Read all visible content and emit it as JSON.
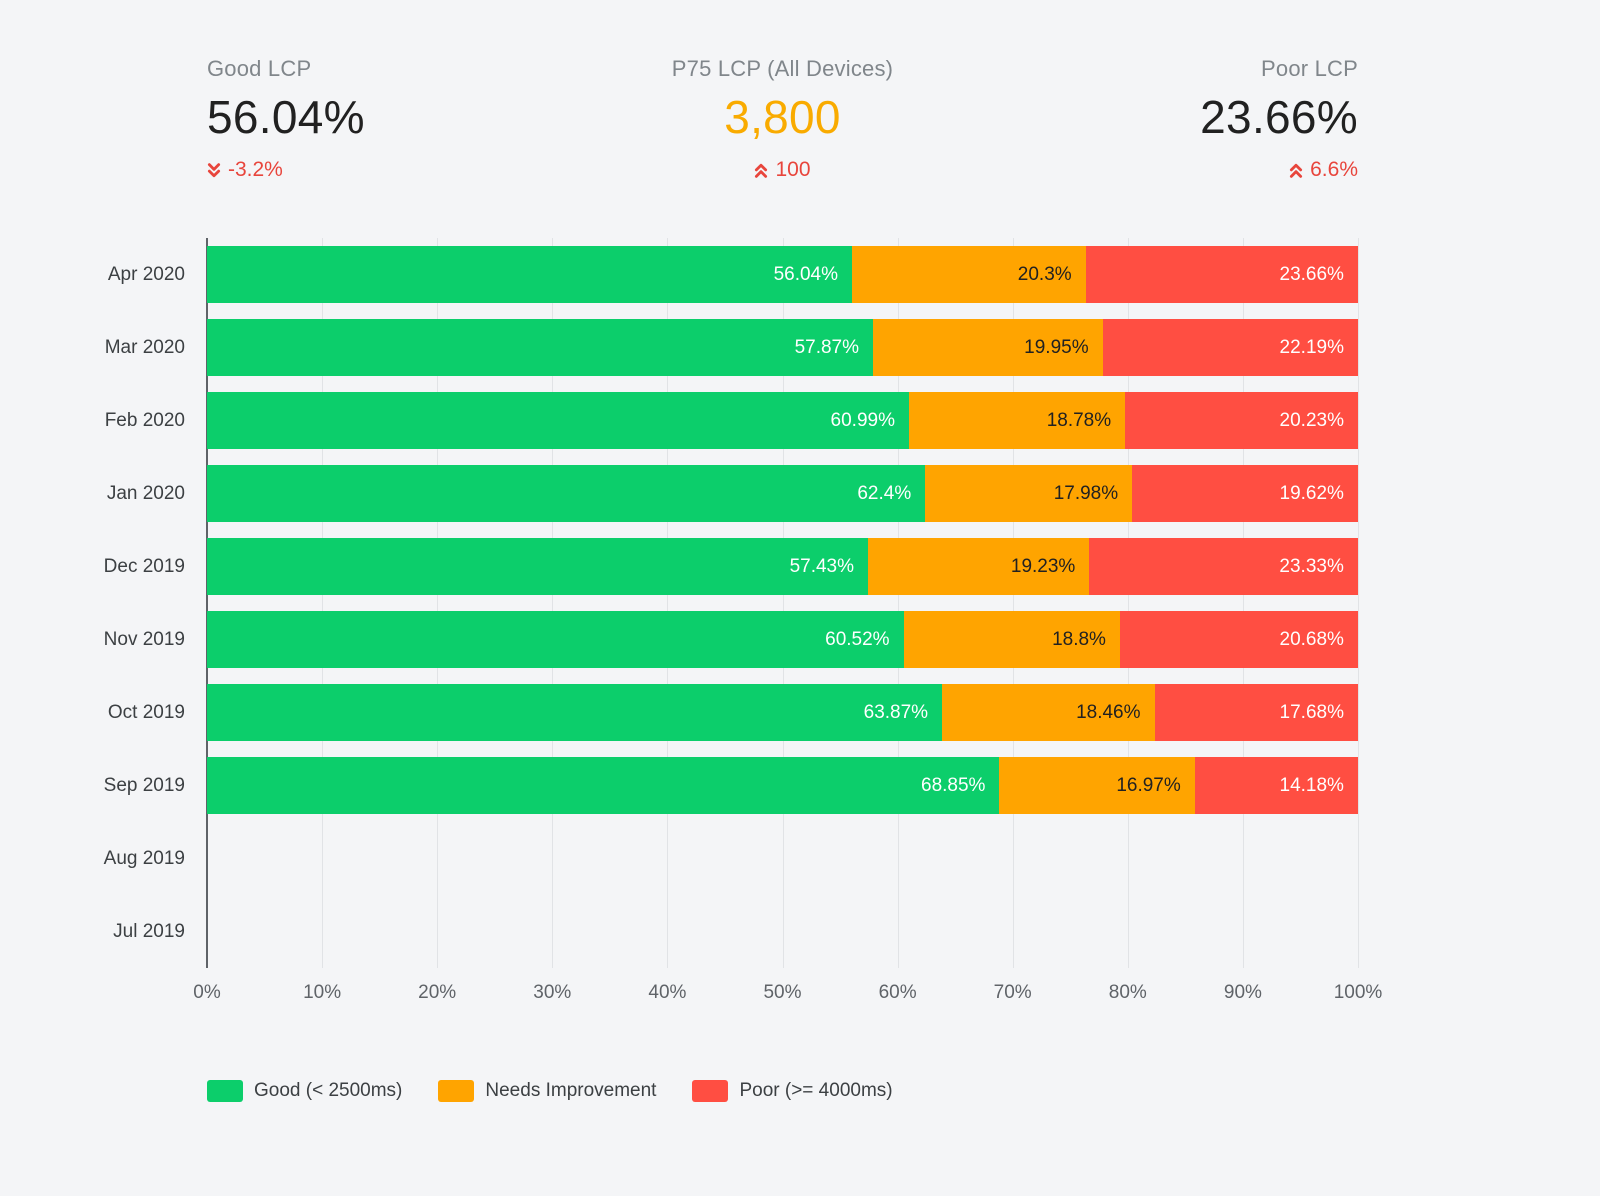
{
  "colors": {
    "bg": "#F4F5F7",
    "text-dark": "#212121",
    "text-gray": "#80868B",
    "label-dark": "#3C4043",
    "axis-text": "#5F6368",
    "grid": "#E1E3E6",
    "axis-line": "#5F6368",
    "delta-red": "#E8453C",
    "p75-orange": "#F9AB00",
    "good": "#0CCE6B",
    "needs-improvement": "#FFA400",
    "poor": "#FF4E42"
  },
  "kpis": {
    "good": {
      "label": "Good LCP",
      "value": "56.04%",
      "delta": "-3.2%",
      "trend": "down"
    },
    "p75": {
      "label": "P75 LCP (All Devices)",
      "value": "3,800",
      "delta": "100",
      "trend": "up",
      "value_color": "#F9AB00"
    },
    "poor": {
      "label": "Poor LCP",
      "value": "23.66%",
      "delta": "6.6%",
      "trend": "up"
    }
  },
  "chart_data": {
    "type": "bar",
    "orientation": "horizontal",
    "stacked": true,
    "categories": [
      "Apr 2020",
      "Mar 2020",
      "Feb 2020",
      "Jan 2020",
      "Dec 2019",
      "Nov 2019",
      "Oct 2019",
      "Sep 2019",
      "Aug 2019",
      "Jul 2019"
    ],
    "series": [
      {
        "key": "good",
        "name": "Good (< 2500ms)",
        "color": "#0CCE6B",
        "text_color": "#FFFFFF",
        "values": [
          56.04,
          57.87,
          60.99,
          62.4,
          57.43,
          60.52,
          63.87,
          68.85,
          null,
          null
        ]
      },
      {
        "key": "needs-improvement",
        "name": "Needs Improvement",
        "color": "#FFA400",
        "text_color": "#212121",
        "values": [
          20.3,
          19.95,
          18.78,
          17.98,
          19.23,
          18.8,
          18.46,
          16.97,
          null,
          null
        ]
      },
      {
        "key": "poor",
        "name": "Poor (>= 4000ms)",
        "color": "#FF4E42",
        "text_color": "#FFFFFF",
        "values": [
          23.66,
          22.19,
          20.23,
          19.62,
          23.33,
          20.68,
          17.68,
          14.18,
          null,
          null
        ]
      }
    ],
    "xlim": [
      0,
      100
    ],
    "x_ticks": [
      "0%",
      "10%",
      "20%",
      "30%",
      "40%",
      "50%",
      "60%",
      "70%",
      "80%",
      "90%",
      "100%"
    ],
    "grid": true,
    "legend_position": "bottom",
    "value_suffix": "%"
  }
}
